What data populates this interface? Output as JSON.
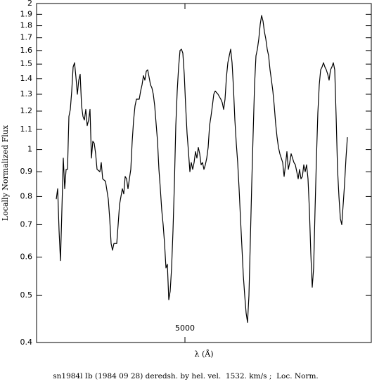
{
  "chart_data": {
    "type": "line",
    "caption": "sn1984l Ib (1984 09 28) deredsh. by hel. vel.  1532. km/s ;  Loc. Norm.",
    "xlabel": "λ (Å)",
    "ylabel": "Locally Normalized Flux",
    "yscale": "log",
    "color": "#000000",
    "xlim": [
      3734,
      6590
    ],
    "xticks": [
      5000
    ],
    "ylim": [
      0.4,
      2
    ],
    "yticks": [
      0.4,
      0.5,
      0.6,
      0.7,
      0.8,
      0.9,
      1,
      1.1,
      1.2,
      1.3,
      1.4,
      1.5,
      1.6,
      1.7,
      1.8,
      1.9,
      2
    ],
    "x": [
      3902,
      3914,
      3926,
      3938,
      3950,
      3962,
      3974,
      3986,
      3998,
      4010,
      4022,
      4034,
      4046,
      4058,
      4070,
      4082,
      4094,
      4106,
      4118,
      4130,
      4142,
      4154,
      4166,
      4178,
      4190,
      4202,
      4214,
      4226,
      4238,
      4250,
      4274,
      4286,
      4298,
      4322,
      4346,
      4358,
      4370,
      4382,
      4394,
      4418,
      4430,
      4442,
      4454,
      4466,
      4478,
      4490,
      4502,
      4514,
      4526,
      4538,
      4550,
      4562,
      4574,
      4586,
      4610,
      4622,
      4634,
      4646,
      4658,
      4670,
      4682,
      4694,
      4706,
      4718,
      4730,
      4742,
      4754,
      4766,
      4778,
      4790,
      4802,
      4814,
      4826,
      4838,
      4850,
      4862,
      4874,
      4886,
      4898,
      4910,
      4922,
      4934,
      4946,
      4958,
      4970,
      4982,
      4994,
      5006,
      5018,
      5030,
      5042,
      5054,
      5066,
      5078,
      5090,
      5102,
      5114,
      5126,
      5138,
      5150,
      5162,
      5174,
      5186,
      5198,
      5210,
      5222,
      5234,
      5246,
      5258,
      5282,
      5306,
      5318,
      5330,
      5342,
      5354,
      5366,
      5378,
      5390,
      5402,
      5414,
      5426,
      5438,
      5450,
      5462,
      5474,
      5486,
      5498,
      5510,
      5522,
      5534,
      5546,
      5558,
      5570,
      5582,
      5594,
      5606,
      5618,
      5630,
      5642,
      5654,
      5666,
      5678,
      5690,
      5702,
      5714,
      5726,
      5738,
      5750,
      5762,
      5774,
      5786,
      5798,
      5810,
      5822,
      5834,
      5846,
      5858,
      5870,
      5882,
      5894,
      5906,
      5918,
      5930,
      5942,
      5954,
      5966,
      5978,
      5990,
      6002,
      6014,
      6026,
      6038,
      6050,
      6062,
      6074,
      6086,
      6098,
      6110,
      6122,
      6134,
      6146,
      6158,
      6170,
      6182,
      6194,
      6206,
      6218,
      6230,
      6242,
      6254,
      6266,
      6278,
      6290,
      6302,
      6314,
      6326,
      6338,
      6350,
      6362,
      6374,
      6386
    ],
    "values": [
      0.79,
      0.83,
      0.68,
      0.59,
      0.75,
      0.96,
      0.83,
      0.91,
      0.91,
      1.17,
      1.21,
      1.32,
      1.48,
      1.51,
      1.41,
      1.3,
      1.39,
      1.43,
      1.23,
      1.17,
      1.15,
      1.21,
      1.12,
      1.15,
      1.21,
      0.96,
      1.04,
      1.03,
      0.98,
      0.91,
      0.9,
      0.94,
      0.87,
      0.86,
      0.79,
      0.72,
      0.64,
      0.62,
      0.64,
      0.64,
      0.7,
      0.77,
      0.8,
      0.83,
      0.81,
      0.88,
      0.87,
      0.83,
      0.87,
      0.91,
      1.04,
      1.15,
      1.23,
      1.27,
      1.27,
      1.32,
      1.36,
      1.42,
      1.39,
      1.45,
      1.46,
      1.41,
      1.36,
      1.34,
      1.3,
      1.23,
      1.13,
      1.04,
      0.91,
      0.83,
      0.75,
      0.7,
      0.64,
      0.57,
      0.58,
      0.49,
      0.51,
      0.57,
      0.68,
      0.85,
      1.12,
      1.32,
      1.48,
      1.6,
      1.61,
      1.58,
      1.43,
      1.23,
      1.08,
      0.99,
      0.9,
      0.94,
      0.91,
      0.94,
      0.99,
      0.96,
      1.01,
      0.98,
      0.93,
      0.94,
      0.91,
      0.93,
      0.96,
      1.01,
      1.12,
      1.17,
      1.23,
      1.3,
      1.32,
      1.3,
      1.27,
      1.25,
      1.21,
      1.27,
      1.41,
      1.51,
      1.56,
      1.61,
      1.51,
      1.34,
      1.15,
      1.03,
      0.94,
      0.83,
      0.72,
      0.63,
      0.55,
      0.5,
      0.46,
      0.44,
      0.5,
      0.65,
      0.85,
      1.08,
      1.36,
      1.56,
      1.61,
      1.69,
      1.81,
      1.89,
      1.84,
      1.75,
      1.69,
      1.61,
      1.56,
      1.46,
      1.39,
      1.32,
      1.23,
      1.13,
      1.06,
      1.01,
      0.98,
      0.96,
      0.94,
      0.88,
      0.93,
      0.99,
      0.91,
      0.94,
      0.98,
      0.96,
      0.94,
      0.93,
      0.9,
      0.87,
      0.91,
      0.87,
      0.88,
      0.93,
      0.9,
      0.93,
      0.87,
      0.75,
      0.61,
      0.52,
      0.57,
      0.75,
      0.96,
      1.19,
      1.36,
      1.46,
      1.48,
      1.51,
      1.48,
      1.46,
      1.43,
      1.39,
      1.46,
      1.48,
      1.51,
      1.46,
      1.17,
      0.91,
      0.8,
      0.72,
      0.7,
      0.77,
      0.85,
      0.96,
      1.06
    ]
  }
}
